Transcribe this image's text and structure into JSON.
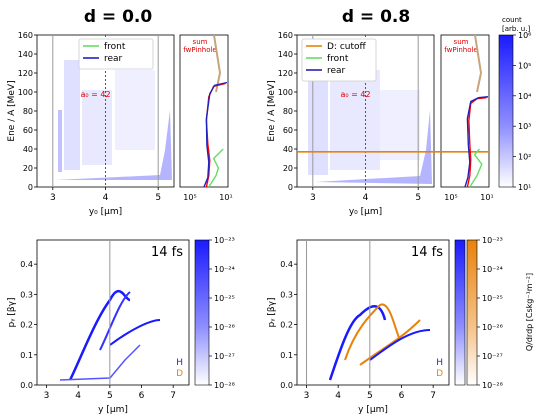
{
  "titles": {
    "left": "d = 0.0",
    "right": "d = 0.8"
  },
  "chart_data": [
    {
      "id": "top-left",
      "type": "scatter",
      "title": "d = 0.0",
      "xlabel": "y₀  [μm]",
      "ylabel": "Ene / A  [MeV]",
      "xlim": [
        2.7,
        5.3
      ],
      "ylim": [
        0,
        160
      ],
      "xticks": [
        "3",
        "4",
        "5"
      ],
      "yticks": [
        "0",
        "20",
        "40",
        "60",
        "80",
        "100",
        "120",
        "140",
        "160"
      ],
      "vlines": [
        3,
        4,
        5
      ],
      "annotation": "a₀ = 42",
      "legend": [
        {
          "name": "front",
          "color": "#66dd66"
        },
        {
          "name": "rear",
          "color": "#2222bb"
        }
      ],
      "inset": {
        "label": "sum fwPinhole",
        "xtick_labels": [
          "10⁵",
          "10¹"
        ],
        "lines": [
          {
            "name": "red",
            "color": "#ff0000",
            "x": [
              0.55,
              0.6,
              0.62,
              0.58,
              0.55,
              0.6,
              0.7,
              0.95
            ],
            "y": [
              0,
              12,
              28,
              45,
              70,
              95,
              106,
              109
            ]
          },
          {
            "name": "rear",
            "color": "#2222bb",
            "x": [
              0.5,
              0.58,
              0.6,
              0.56,
              0.55,
              0.62,
              0.72,
              0.98
            ],
            "y": [
              0,
              10,
              26,
              44,
              72,
              98,
              107,
              110
            ]
          },
          {
            "name": "front",
            "color": "#66dd66",
            "x": [
              0.6,
              0.75,
              0.8,
              0.7,
              0.9
            ],
            "y": [
              0,
              12,
              20,
              30,
              40
            ]
          }
        ]
      }
    },
    {
      "id": "top-right",
      "type": "scatter",
      "title": "d = 0.8",
      "xlabel": "y₀  [μm]",
      "ylabel": "Ene / A  [MeV]",
      "xlim": [
        2.7,
        5.3
      ],
      "ylim": [
        0,
        160
      ],
      "xticks": [
        "3",
        "4",
        "5"
      ],
      "yticks": [
        "0",
        "20",
        "40",
        "60",
        "80",
        "100",
        "120",
        "140",
        "160"
      ],
      "vlines": [
        3,
        4,
        5
      ],
      "hline": 37,
      "annotation": "a₀ = 42",
      "legend": [
        {
          "name": "D: cutoff",
          "color": "#e8820c"
        },
        {
          "name": "front",
          "color": "#66dd66"
        },
        {
          "name": "rear",
          "color": "#2222bb"
        }
      ],
      "inset": {
        "label": "sum fwPinhole",
        "xtick_labels": [
          "10⁵",
          "10¹"
        ],
        "lines": [
          {
            "name": "red",
            "color": "#ff0000",
            "x": [
              0.55,
              0.6,
              0.62,
              0.6,
              0.58,
              0.62,
              0.75,
              0.95
            ],
            "y": [
              0,
              12,
              28,
              45,
              70,
              88,
              93,
              94
            ]
          },
          {
            "name": "rear",
            "color": "#2222bb",
            "x": [
              0.5,
              0.56,
              0.6,
              0.57,
              0.55,
              0.62,
              0.78,
              0.98
            ],
            "y": [
              0,
              10,
              26,
              44,
              72,
              90,
              94,
              95
            ]
          },
          {
            "name": "front",
            "color": "#66dd66",
            "x": [
              0.6,
              0.75,
              0.85,
              0.7,
              0.8
            ],
            "y": [
              0,
              12,
              24,
              34,
              40
            ]
          }
        ]
      }
    },
    {
      "id": "bottom-left",
      "type": "scatter",
      "xlabel": "y [μm]",
      "ylabel": "pᵧ [βγ]",
      "xlim": [
        2.7,
        7.5
      ],
      "ylim": [
        0,
        0.48
      ],
      "xticks": [
        "3",
        "4",
        "5",
        "6",
        "7"
      ],
      "yticks": [
        "0.0",
        "0.1",
        "0.2",
        "0.3",
        "0.4"
      ],
      "vlines": [
        5
      ],
      "annotation": "14 fs",
      "labels": [
        {
          "text": "H",
          "color": "#2222ee"
        },
        {
          "text": "D",
          "color": "#e8820c"
        }
      ]
    },
    {
      "id": "bottom-right",
      "type": "scatter",
      "xlabel": "y [μm]",
      "ylabel": "pᵧ [βγ]",
      "xlim": [
        2.7,
        7.5
      ],
      "ylim": [
        0,
        0.48
      ],
      "xticks": [
        "3",
        "4",
        "5",
        "6",
        "7"
      ],
      "yticks": [
        "0.0",
        "0.1",
        "0.2",
        "0.3",
        "0.4"
      ],
      "vlines": [
        3,
        5
      ],
      "annotation": "14 fs",
      "labels": [
        {
          "text": "H",
          "color": "#2222ee"
        },
        {
          "text": "D",
          "color": "#e8820c"
        }
      ]
    }
  ],
  "colorbars": {
    "top": {
      "title": "count",
      "unit": "[arb. u.]",
      "ticks": [
        "10⁶",
        "10⁵",
        "10⁴",
        "10³",
        "10²",
        "10¹"
      ],
      "scale": "log",
      "colors": [
        "#1a1aff",
        "#ffffff"
      ]
    },
    "bottom_left": {
      "ticks": [
        "10⁻²³",
        "10⁻²⁴",
        "10⁻²⁵",
        "10⁻²⁶",
        "10⁻²⁷",
        "10⁻²⁸"
      ],
      "scale": "log",
      "colors": [
        "#1a1aff",
        "#ffffff"
      ]
    },
    "bottom_right": {
      "label": "Q/drdp [Cskg⁻¹m⁻²]",
      "ticks": [
        "10⁻²³",
        "10⁻²⁴",
        "10⁻²⁵",
        "10⁻²⁶",
        "10⁻²⁷",
        "10⁻²⁸"
      ],
      "scale": "log",
      "colors": [
        "#1a1aff",
        "#e8820c",
        "#ffffff"
      ]
    }
  }
}
